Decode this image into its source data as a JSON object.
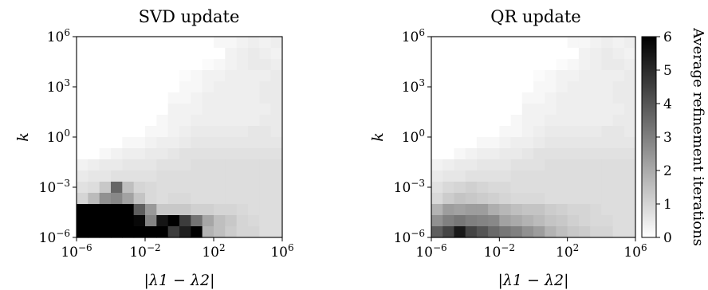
{
  "chart_data": [
    {
      "type": "heatmap",
      "title": "SVD update",
      "xlabel": "|λ1 − λ2|",
      "ylabel": "k",
      "x_scale": "log",
      "y_scale": "log",
      "xlim": [
        1e-06,
        1000000.0
      ],
      "ylim": [
        1e-06,
        1000000.0
      ],
      "xtick_labels": [
        "10^-6",
        "10^-2",
        "10^2",
        "10^6"
      ],
      "ytick_labels": [
        "10^-6",
        "10^-3",
        "10^0",
        "10^3",
        "10^6"
      ],
      "values": [
        [
          0,
          0,
          0,
          0,
          0,
          0,
          0,
          0,
          0,
          0,
          0,
          0,
          0.2,
          0.2,
          0.3,
          0.4,
          0.3,
          0.4
        ],
        [
          0,
          0,
          0,
          0,
          0,
          0,
          0,
          0,
          0,
          0,
          0,
          0,
          0,
          0.3,
          0.4,
          0.5,
          0.4,
          0.3
        ],
        [
          0,
          0,
          0,
          0,
          0,
          0,
          0,
          0,
          0,
          0,
          0,
          0.1,
          0.2,
          0.3,
          0.4,
          0.5,
          0.5,
          0.4
        ],
        [
          0,
          0,
          0,
          0,
          0,
          0,
          0,
          0,
          0,
          0.1,
          0.2,
          0.3,
          0.3,
          0.4,
          0.4,
          0.4,
          0.4,
          0.5
        ],
        [
          0,
          0,
          0,
          0,
          0,
          0,
          0,
          0,
          0,
          0.2,
          0.2,
          0.3,
          0.4,
          0.4,
          0.4,
          0.4,
          0.5,
          0.5
        ],
        [
          0,
          0,
          0,
          0,
          0,
          0,
          0,
          0,
          0.2,
          0.2,
          0.3,
          0.4,
          0.4,
          0.4,
          0.4,
          0.4,
          0.5,
          0.5
        ],
        [
          0,
          0,
          0,
          0,
          0,
          0,
          0,
          0,
          0.3,
          0.3,
          0.3,
          0.4,
          0.4,
          0.4,
          0.4,
          0.4,
          0.4,
          0.5
        ],
        [
          0,
          0,
          0,
          0,
          0,
          0,
          0,
          0.2,
          0.3,
          0.3,
          0.4,
          0.4,
          0.4,
          0.4,
          0.4,
          0.4,
          0.5,
          0.5
        ],
        [
          0,
          0,
          0,
          0,
          0,
          0,
          0.2,
          0.2,
          0.3,
          0.4,
          0.5,
          0.5,
          0.5,
          0.5,
          0.5,
          0.6,
          0.6,
          0.5
        ],
        [
          0,
          0,
          0,
          0,
          0.2,
          0.2,
          0.3,
          0.4,
          0.4,
          0.5,
          0.6,
          0.6,
          0.6,
          0.6,
          0.6,
          0.6,
          0.6,
          0.6
        ],
        [
          0,
          0,
          0.2,
          0.3,
          0.4,
          0.4,
          0.5,
          0.5,
          0.6,
          0.7,
          0.7,
          0.7,
          0.7,
          0.7,
          0.7,
          0.7,
          0.7,
          0.7
        ],
        [
          0.3,
          0.4,
          0.5,
          0.5,
          0.6,
          0.6,
          0.6,
          0.7,
          0.7,
          0.7,
          0.8,
          0.8,
          0.8,
          0.8,
          0.8,
          0.8,
          0.8,
          0.8
        ],
        [
          0.5,
          0.6,
          0.6,
          0.7,
          0.7,
          0.7,
          0.7,
          0.8,
          0.8,
          0.8,
          0.8,
          0.8,
          0.8,
          0.8,
          0.8,
          0.8,
          0.8,
          0.8
        ],
        [
          0.7,
          0.8,
          1.3,
          3.6,
          1.5,
          1.0,
          0.9,
          0.8,
          0.8,
          0.8,
          0.8,
          0.8,
          0.8,
          0.8,
          0.8,
          0.8,
          0.8,
          0.8
        ],
        [
          1.0,
          1.6,
          2.6,
          2.8,
          2.2,
          1.4,
          0.9,
          0.8,
          0.9,
          0.9,
          0.8,
          0.8,
          0.8,
          0.8,
          0.8,
          0.8,
          0.8,
          0.8
        ],
        [
          6.0,
          6.0,
          6.0,
          6.0,
          6.0,
          3.8,
          2.4,
          1.3,
          1.3,
          1.3,
          1.1,
          1.1,
          1.0,
          1.0,
          0.9,
          0.8,
          0.8,
          0.8
        ],
        [
          6.0,
          6.0,
          6.0,
          6.0,
          6.0,
          5.8,
          2.9,
          5.5,
          6.0,
          4.6,
          3.3,
          2.1,
          1.5,
          1.3,
          1.0,
          0.9,
          0.8,
          0.8
        ],
        [
          6.0,
          6.0,
          6.0,
          6.0,
          6.0,
          6.0,
          6.0,
          6.0,
          4.6,
          5.3,
          6.0,
          1.8,
          1.5,
          1.2,
          1.0,
          1.0,
          0.8,
          0.8
        ]
      ]
    },
    {
      "type": "heatmap",
      "title": "QR update",
      "xlabel": "|λ1 − λ2|",
      "ylabel": "k",
      "x_scale": "log",
      "y_scale": "log",
      "xlim": [
        1e-06,
        1000000.0
      ],
      "ylim": [
        1e-06,
        1000000.0
      ],
      "xtick_labels": [
        "10^-6",
        "10^-2",
        "10^2",
        "10^6"
      ],
      "ytick_labels": [
        "10^-6",
        "10^-3",
        "10^0",
        "10^3",
        "10^6"
      ],
      "values": [
        [
          0,
          0,
          0,
          0,
          0,
          0,
          0,
          0,
          0,
          0,
          0,
          0,
          0.2,
          0.2,
          0.3,
          0.4,
          0.3,
          0.4
        ],
        [
          0,
          0,
          0,
          0,
          0,
          0,
          0,
          0,
          0,
          0,
          0,
          0,
          0,
          0.3,
          0.4,
          0.5,
          0.4,
          0.3
        ],
        [
          0,
          0,
          0,
          0,
          0,
          0,
          0,
          0,
          0,
          0,
          0,
          0.1,
          0.2,
          0.3,
          0.4,
          0.5,
          0.5,
          0.4
        ],
        [
          0,
          0,
          0,
          0,
          0,
          0,
          0,
          0,
          0,
          0.1,
          0.2,
          0.3,
          0.3,
          0.4,
          0.4,
          0.4,
          0.4,
          0.5
        ],
        [
          0,
          0,
          0,
          0,
          0,
          0,
          0,
          0,
          0,
          0.2,
          0.2,
          0.3,
          0.4,
          0.4,
          0.4,
          0.4,
          0.5,
          0.5
        ],
        [
          0,
          0,
          0,
          0,
          0,
          0,
          0,
          0,
          0.2,
          0.2,
          0.3,
          0.4,
          0.4,
          0.4,
          0.4,
          0.4,
          0.5,
          0.5
        ],
        [
          0,
          0,
          0,
          0,
          0,
          0,
          0,
          0,
          0.3,
          0.3,
          0.3,
          0.4,
          0.4,
          0.4,
          0.4,
          0.4,
          0.4,
          0.5
        ],
        [
          0,
          0,
          0,
          0,
          0,
          0,
          0,
          0.2,
          0.3,
          0.3,
          0.4,
          0.4,
          0.4,
          0.4,
          0.4,
          0.4,
          0.5,
          0.5
        ],
        [
          0,
          0,
          0,
          0,
          0,
          0,
          0.2,
          0.2,
          0.3,
          0.4,
          0.5,
          0.5,
          0.5,
          0.5,
          0.5,
          0.6,
          0.6,
          0.5
        ],
        [
          0,
          0,
          0,
          0,
          0.2,
          0.2,
          0.3,
          0.4,
          0.4,
          0.5,
          0.6,
          0.6,
          0.6,
          0.6,
          0.6,
          0.6,
          0.6,
          0.6
        ],
        [
          0,
          0,
          0.2,
          0.3,
          0.4,
          0.4,
          0.5,
          0.5,
          0.6,
          0.7,
          0.7,
          0.7,
          0.7,
          0.7,
          0.7,
          0.7,
          0.7,
          0.7
        ],
        [
          0.3,
          0.4,
          0.5,
          0.5,
          0.6,
          0.6,
          0.6,
          0.7,
          0.7,
          0.7,
          0.8,
          0.8,
          0.8,
          0.8,
          0.8,
          0.8,
          0.8,
          0.8
        ],
        [
          0.5,
          0.6,
          0.6,
          0.7,
          0.7,
          0.7,
          0.7,
          0.8,
          0.8,
          0.8,
          0.8,
          0.8,
          0.8,
          0.8,
          0.8,
          0.8,
          0.8,
          0.8
        ],
        [
          0.7,
          0.9,
          1.0,
          1.1,
          1.0,
          0.9,
          0.9,
          0.8,
          0.8,
          0.8,
          0.8,
          0.8,
          0.8,
          0.8,
          0.8,
          0.8,
          0.8,
          0.8
        ],
        [
          0.9,
          1.2,
          1.4,
          1.3,
          1.2,
          1.1,
          1.0,
          0.9,
          0.9,
          0.9,
          0.8,
          0.8,
          0.8,
          0.8,
          0.8,
          0.8,
          0.8,
          0.8
        ],
        [
          1.8,
          2.3,
          2.2,
          2.3,
          2.3,
          1.9,
          1.7,
          1.5,
          1.4,
          1.4,
          1.2,
          1.1,
          1.0,
          1.0,
          0.9,
          0.8,
          0.8,
          0.8
        ],
        [
          2.6,
          3.0,
          3.2,
          3.0,
          2.9,
          2.8,
          2.2,
          2.0,
          1.8,
          1.6,
          1.4,
          1.3,
          1.1,
          1.0,
          0.9,
          0.9,
          0.8,
          0.8
        ],
        [
          3.8,
          4.4,
          5.4,
          4.4,
          4.0,
          3.5,
          3.2,
          3.0,
          2.6,
          2.3,
          1.8,
          1.5,
          1.3,
          1.2,
          1.0,
          1.0,
          0.8,
          0.8
        ]
      ]
    }
  ],
  "colorbar": {
    "label": "Average refinement iterations",
    "range": [
      0,
      6
    ],
    "ticks": [
      "0",
      "1",
      "2",
      "3",
      "4",
      "5",
      "6"
    ]
  }
}
